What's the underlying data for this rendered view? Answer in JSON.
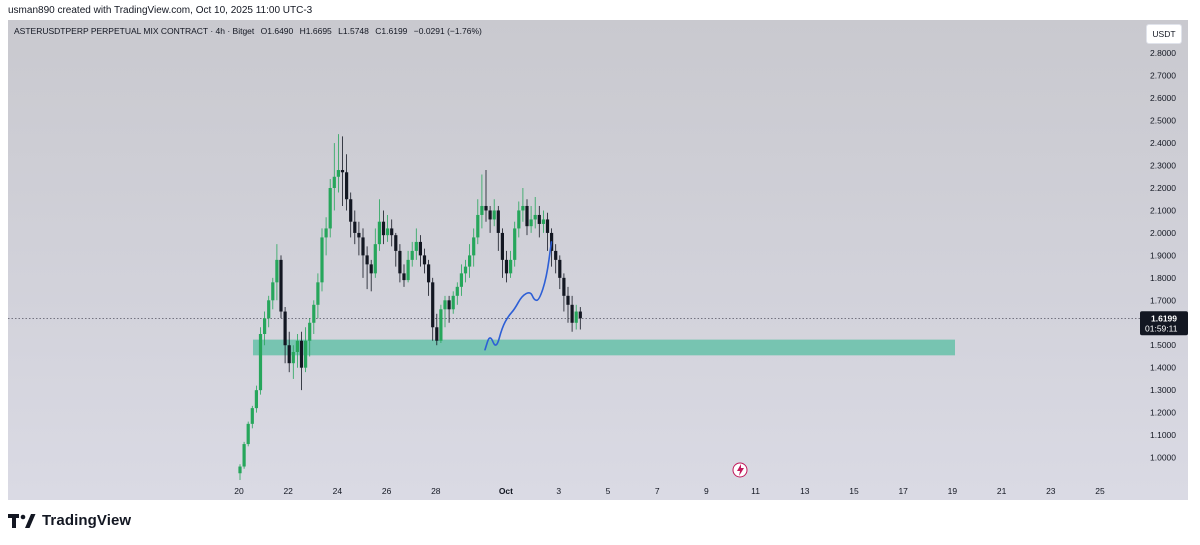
{
  "header": {
    "credit": "usman890 created with TradingView.com, Oct 10, 2025 11:00 UTC-3"
  },
  "legend": {
    "symbol": "ASTERUSDTPERP PERPETUAL MIX CONTRACT · 4h · Bitget",
    "open": "O1.6490",
    "high": "H1.6695",
    "low": "L1.5748",
    "close": "C1.6199",
    "change": "−0.0291 (−1.76%)"
  },
  "currency_button": "USDT",
  "price_badge": {
    "price": "1.6199",
    "countdown": "01:59:11"
  },
  "branding": {
    "logo_text": "TradingView"
  },
  "colors": {
    "up": "#26a65b",
    "down": "#131722",
    "zone": "#6fc2ac",
    "drawing": "#2d5fd6",
    "badge": "#131722"
  },
  "chart_data": {
    "type": "candlestick",
    "interval": "4h",
    "ylim": [
      0.9,
      2.85
    ],
    "y_ticks": [
      "2.8000",
      "2.7000",
      "2.6000",
      "2.5000",
      "2.4000",
      "2.3000",
      "2.2000",
      "2.1000",
      "2.0000",
      "1.9000",
      "1.8000",
      "1.7000",
      "1.6000",
      "1.5000",
      "1.4000",
      "1.3000",
      "1.2000",
      "1.1000",
      "1.0000"
    ],
    "x_ticks": [
      "20",
      "22",
      "24",
      "26",
      "28",
      "Oct",
      "3",
      "5",
      "7",
      "9",
      "11",
      "13",
      "15",
      "17",
      "19",
      "21",
      "23",
      "25"
    ],
    "last_price": 1.6199,
    "candles": [
      [
        0.93,
        0.96,
        0.9,
        0.97
      ],
      [
        0.96,
        1.06,
        0.95,
        1.07
      ],
      [
        1.06,
        1.15,
        1.05,
        1.16
      ],
      [
        1.15,
        1.22,
        1.13,
        1.23
      ],
      [
        1.22,
        1.3,
        1.2,
        1.32
      ],
      [
        1.3,
        1.55,
        1.28,
        1.58
      ],
      [
        1.55,
        1.62,
        1.5,
        1.65
      ],
      [
        1.62,
        1.7,
        1.58,
        1.72
      ],
      [
        1.7,
        1.78,
        1.66,
        1.8
      ],
      [
        1.78,
        1.88,
        1.7,
        1.95
      ],
      [
        1.88,
        1.65,
        1.62,
        1.9
      ],
      [
        1.65,
        1.5,
        1.42,
        1.67
      ],
      [
        1.5,
        1.42,
        1.38,
        1.56
      ],
      [
        1.42,
        1.47,
        1.35,
        1.5
      ],
      [
        1.47,
        1.52,
        1.4,
        1.55
      ],
      [
        1.52,
        1.4,
        1.3,
        1.56
      ],
      [
        1.4,
        1.52,
        1.38,
        1.58
      ],
      [
        1.52,
        1.6,
        1.45,
        1.62
      ],
      [
        1.6,
        1.68,
        1.55,
        1.7
      ],
      [
        1.68,
        1.78,
        1.62,
        1.82
      ],
      [
        1.78,
        1.98,
        1.74,
        2.02
      ],
      [
        1.98,
        2.02,
        1.9,
        2.07
      ],
      [
        2.02,
        2.2,
        1.98,
        2.24
      ],
      [
        2.2,
        2.25,
        2.1,
        2.4
      ],
      [
        2.25,
        2.28,
        2.18,
        2.44
      ],
      [
        2.28,
        2.27,
        2.12,
        2.43
      ],
      [
        2.27,
        2.15,
        2.1,
        2.35
      ],
      [
        2.15,
        2.05,
        1.98,
        2.18
      ],
      [
        2.05,
        2.0,
        1.95,
        2.1
      ],
      [
        2.0,
        1.98,
        1.9,
        2.05
      ],
      [
        1.98,
        1.9,
        1.8,
        2.02
      ],
      [
        1.9,
        1.86,
        1.75,
        1.94
      ],
      [
        1.86,
        1.82,
        1.74,
        1.88
      ],
      [
        1.82,
        1.95,
        1.8,
        2.02
      ],
      [
        1.95,
        2.05,
        1.92,
        2.15
      ],
      [
        2.05,
        1.99,
        1.95,
        2.1
      ],
      [
        1.99,
        2.02,
        1.96,
        2.08
      ],
      [
        2.02,
        1.99,
        1.94,
        2.06
      ],
      [
        1.99,
        1.92,
        1.85,
        2.0
      ],
      [
        1.92,
        1.82,
        1.78,
        1.95
      ],
      [
        1.82,
        1.79,
        1.76,
        1.86
      ],
      [
        1.79,
        1.88,
        1.78,
        1.92
      ],
      [
        1.88,
        1.92,
        1.85,
        1.96
      ],
      [
        1.92,
        1.96,
        1.88,
        2.02
      ],
      [
        1.96,
        1.9,
        1.85,
        1.99
      ],
      [
        1.9,
        1.86,
        1.82,
        1.93
      ],
      [
        1.86,
        1.78,
        1.72,
        1.88
      ],
      [
        1.78,
        1.58,
        1.52,
        1.8
      ],
      [
        1.58,
        1.52,
        1.5,
        1.64
      ],
      [
        1.52,
        1.66,
        1.51,
        1.68
      ],
      [
        1.66,
        1.7,
        1.58,
        1.72
      ],
      [
        1.7,
        1.66,
        1.6,
        1.72
      ],
      [
        1.66,
        1.72,
        1.64,
        1.74
      ],
      [
        1.72,
        1.76,
        1.68,
        1.78
      ],
      [
        1.76,
        1.82,
        1.72,
        1.86
      ],
      [
        1.82,
        1.85,
        1.78,
        1.88
      ],
      [
        1.85,
        1.9,
        1.8,
        1.95
      ],
      [
        1.9,
        1.98,
        1.85,
        2.02
      ],
      [
        1.98,
        2.08,
        1.95,
        2.15
      ],
      [
        2.08,
        2.12,
        2.02,
        2.26
      ],
      [
        2.12,
        2.1,
        2.05,
        2.28
      ],
      [
        2.1,
        2.06,
        2.0,
        2.12
      ],
      [
        2.06,
        2.1,
        2.03,
        2.15
      ],
      [
        2.1,
        2.0,
        1.92,
        2.12
      ],
      [
        2.0,
        1.88,
        1.8,
        2.02
      ],
      [
        1.88,
        1.82,
        1.78,
        1.92
      ],
      [
        1.82,
        1.88,
        1.8,
        1.92
      ],
      [
        1.88,
        2.02,
        1.85,
        2.05
      ],
      [
        2.02,
        2.1,
        1.98,
        2.14
      ],
      [
        2.1,
        2.12,
        2.05,
        2.2
      ],
      [
        2.12,
        2.03,
        1.99,
        2.15
      ],
      [
        2.03,
        2.06,
        2.0,
        2.12
      ],
      [
        2.06,
        2.08,
        2.02,
        2.16
      ],
      [
        2.08,
        2.04,
        1.98,
        2.12
      ],
      [
        2.04,
        2.06,
        2.0,
        2.1
      ],
      [
        2.06,
        2.0,
        1.92,
        2.09
      ],
      [
        2.0,
        1.92,
        1.85,
        2.02
      ],
      [
        1.92,
        1.88,
        1.82,
        1.95
      ],
      [
        1.88,
        1.8,
        1.75,
        1.9
      ],
      [
        1.8,
        1.72,
        1.65,
        1.82
      ],
      [
        1.72,
        1.68,
        1.6,
        1.76
      ],
      [
        1.68,
        1.6,
        1.56,
        1.72
      ],
      [
        1.6,
        1.65,
        1.57,
        1.68
      ],
      [
        1.65,
        1.62,
        1.57,
        1.67
      ]
    ],
    "support_zone": {
      "from": 1.455,
      "to": 1.525
    },
    "projection_path": [
      [
        10.0,
        1.48
      ],
      [
        10.2,
        1.55
      ],
      [
        10.45,
        1.48
      ],
      [
        10.7,
        1.58
      ],
      [
        10.95,
        1.63
      ],
      [
        11.2,
        1.66
      ],
      [
        11.5,
        1.72
      ],
      [
        11.85,
        1.74
      ],
      [
        12.0,
        1.7
      ],
      [
        12.2,
        1.7
      ],
      [
        12.5,
        1.8
      ],
      [
        12.7,
        1.96
      ]
    ]
  }
}
